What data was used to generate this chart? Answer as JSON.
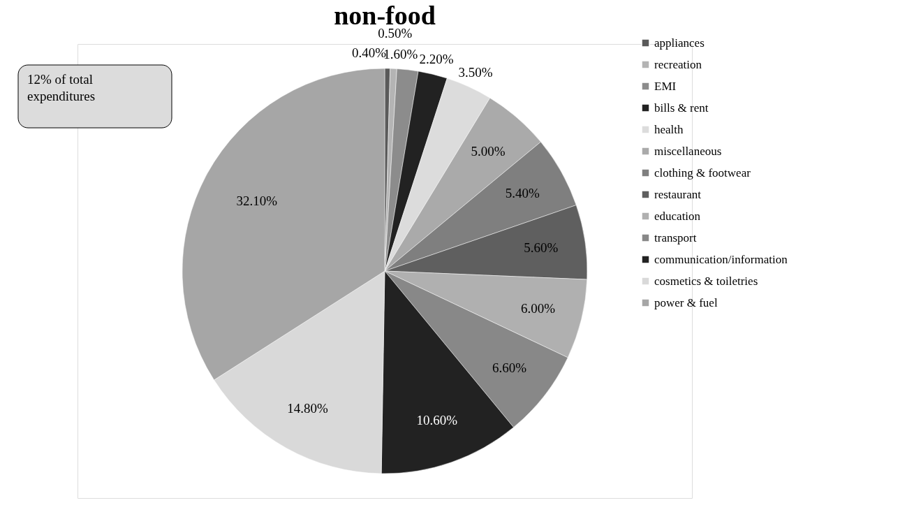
{
  "chart_data": {
    "type": "pie",
    "title": "non-food",
    "categories": [
      "appliances",
      "recreation",
      "EMI",
      "bills & rent",
      "health",
      "miscellaneous",
      "clothing & footwear",
      "restaurant",
      "education",
      "transport",
      "communication/information",
      "cosmetics & toiletries",
      "power & fuel"
    ],
    "values": [
      0.4,
      0.5,
      1.6,
      2.2,
      3.5,
      5.0,
      5.4,
      5.6,
      6.0,
      6.6,
      10.6,
      14.8,
      32.1
    ],
    "value_labels": [
      "0.40%",
      "0.50%",
      "1.60%",
      "2.20%",
      "3.50%",
      "5.00%",
      "5.40%",
      "5.60%",
      "6.00%",
      "6.60%",
      "10.60%",
      "14.80%",
      "32.10%"
    ],
    "colors": [
      "#5a5a5a",
      "#b4b4b4",
      "#8c8c8c",
      "#222222",
      "#dcdcdc",
      "#aaaaaa",
      "#7f7f7f",
      "#5f5f5f",
      "#b0b0b0",
      "#888888",
      "#222222",
      "#d9d9d9",
      "#a6a6a6"
    ],
    "legend": "right",
    "annotations": [
      "12% of total expenditures"
    ]
  }
}
